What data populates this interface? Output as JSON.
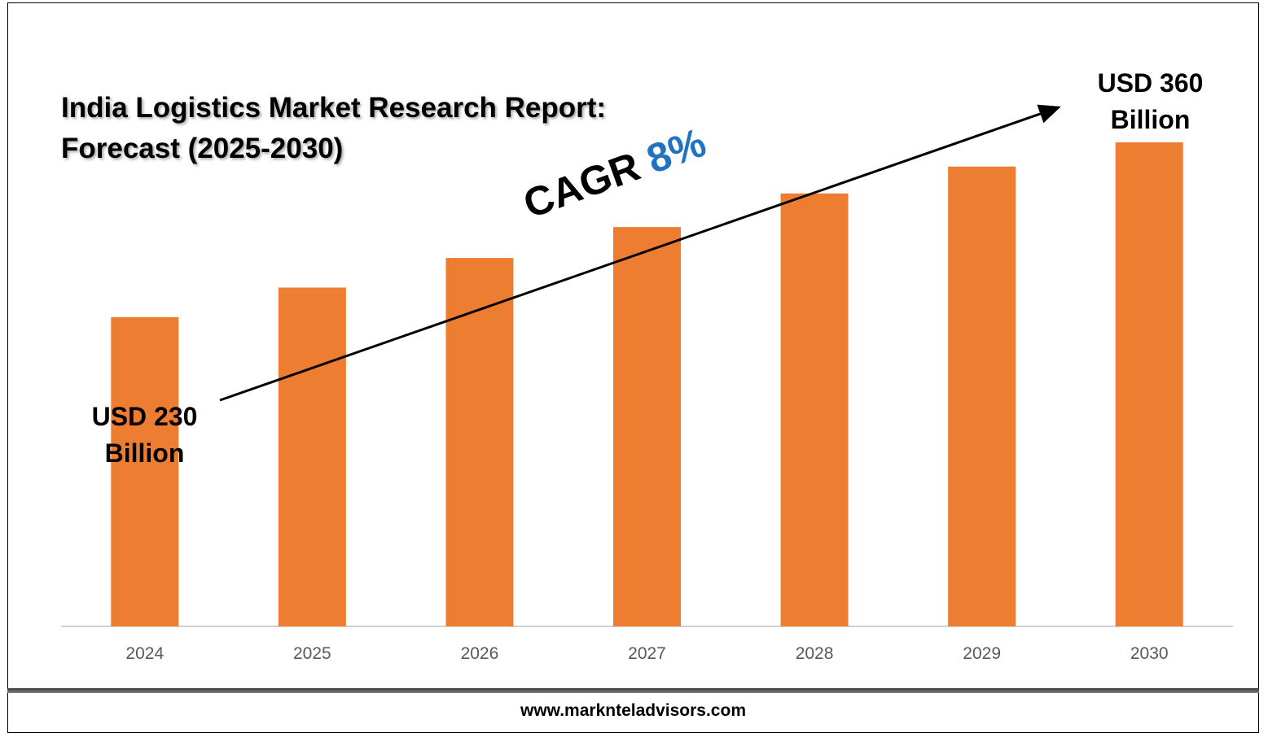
{
  "chart_data": {
    "type": "bar",
    "title": "India Logistics Market Research Report: Forecast (2025-2030)",
    "title_lines": [
      "India Logistics Market Research Report:",
      "Forecast (2025-2030)"
    ],
    "categories": [
      "2024",
      "2025",
      "2026",
      "2027",
      "2028",
      "2029",
      "2030"
    ],
    "values": [
      230,
      252,
      274,
      297,
      322,
      342,
      360
    ],
    "ylim": [
      0,
      360
    ],
    "xlabel": "",
    "ylabel": "",
    "bar_color": "#ED7D31",
    "grid": false,
    "annotations": {
      "start_line1": "USD 230",
      "start_line2": "Billion",
      "end_line1": "USD 360",
      "end_line2": "Billion",
      "cagr_label": "CAGR",
      "cagr_value": "8%",
      "cagr_color": "#1F73C0"
    }
  },
  "footer": {
    "website": "www.marknteladvisors.com"
  }
}
